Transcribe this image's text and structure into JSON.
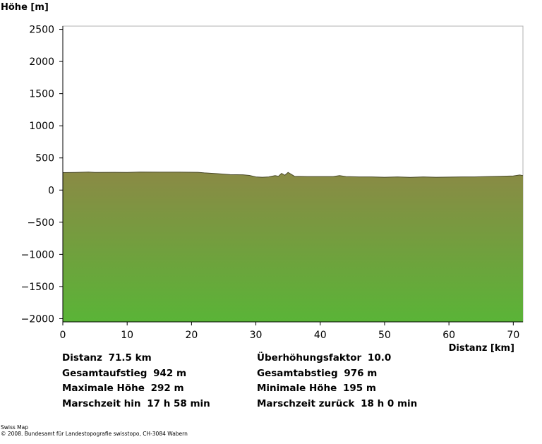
{
  "chart_data": {
    "type": "area",
    "ylabel": "Höhe [m]",
    "xlabel": "Distanz [km]",
    "xlim": [
      0,
      71.5
    ],
    "ylim": [
      -2050,
      2550
    ],
    "xticks": [
      0,
      10,
      20,
      30,
      40,
      50,
      60,
      70
    ],
    "yticks": [
      2500,
      2000,
      1500,
      1000,
      500,
      0,
      -500,
      -1000,
      -1500,
      -2000
    ],
    "ytick_labels": [
      "2500",
      "2000",
      "1500",
      "1000",
      "500",
      "0",
      "−500",
      "−1000",
      "−1500",
      "−2000"
    ],
    "grid": false,
    "fill_top_color": "#8a8a45",
    "fill_bottom_color": "#5ab437",
    "line_color": "#4a4a2a",
    "x": [
      0,
      2,
      4,
      5,
      8,
      10,
      12,
      15,
      18,
      21,
      22,
      24,
      26,
      28,
      29,
      30,
      31,
      32,
      33,
      33.5,
      34,
      34.5,
      35,
      36,
      38,
      40,
      42,
      43,
      44,
      46,
      48,
      50,
      52,
      54,
      56,
      58,
      60,
      62,
      64,
      66,
      68,
      70,
      71,
      71.5
    ],
    "y": [
      272,
      275,
      280,
      275,
      276,
      275,
      280,
      278,
      278,
      276,
      268,
      255,
      240,
      238,
      228,
      205,
      200,
      205,
      225,
      215,
      260,
      230,
      275,
      215,
      210,
      210,
      210,
      225,
      210,
      205,
      205,
      200,
      205,
      197,
      205,
      200,
      202,
      205,
      205,
      210,
      215,
      220,
      235,
      225
    ]
  },
  "stats_left": [
    {
      "label": "Distanz",
      "value": "71.5 km"
    },
    {
      "label": "Gesamtaufstieg",
      "value": "942 m"
    },
    {
      "label": "Maximale Höhe",
      "value": "292 m"
    },
    {
      "label": "Marschzeit hin",
      "value": "17 h 58 min"
    }
  ],
  "stats_right": [
    {
      "label": "Überhöhungsfaktor",
      "value": "10.0"
    },
    {
      "label": "Gesamtabstieg",
      "value": "976 m"
    },
    {
      "label": "Minimale Höhe",
      "value": "195 m"
    },
    {
      "label": "Marschzeit zurück",
      "value": "18 h 0 min"
    }
  ],
  "footer": {
    "line1": "Swiss Map",
    "line2": "© 2008. Bundesamt für Landestopografie swisstopo, CH-3084 Wabern"
  }
}
